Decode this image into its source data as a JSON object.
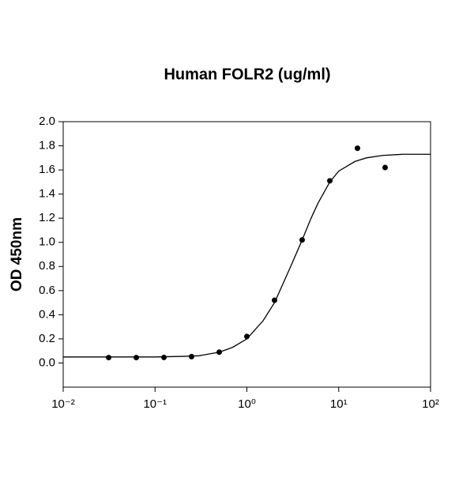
{
  "chart_data": {
    "type": "scatter",
    "title": "Human FOLR2 (ug/ml)",
    "y_label": "OD 450nm",
    "x_scale": "log",
    "xlim": [
      0.01,
      100
    ],
    "xticks": [
      {
        "value": 0.01,
        "label": "10⁻²"
      },
      {
        "value": 0.1,
        "label": "10⁻¹"
      },
      {
        "value": 1,
        "label": "10⁰"
      },
      {
        "value": 10,
        "label": "10¹"
      },
      {
        "value": 100,
        "label": "10²"
      }
    ],
    "ylim": [
      -0.2,
      2.0
    ],
    "yticks": [
      {
        "value": 0,
        "label": "0.0"
      },
      0.2,
      0.4,
      0.6,
      0.8,
      {
        "value": 1,
        "label": "1.0"
      },
      1.2,
      1.4,
      1.6,
      1.8,
      {
        "value": 2,
        "label": "2.0"
      }
    ],
    "series": [
      {
        "style": "points",
        "color": "#000000",
        "x": [
          0.03125,
          0.0625,
          0.125,
          0.25,
          0.5,
          1,
          2,
          4,
          8,
          16,
          32
        ],
        "values": [
          0.045,
          0.045,
          0.046,
          0.053,
          0.09,
          0.22,
          0.52,
          1.02,
          1.51,
          1.78,
          1.62
        ]
      },
      {
        "style": "line",
        "color": "#000000",
        "x": [
          0.01,
          0.1,
          0.2,
          0.3,
          0.5,
          0.7,
          1,
          1.5,
          2,
          3,
          4,
          5,
          6,
          8,
          10,
          15,
          20,
          30,
          50,
          100
        ],
        "values": [
          0.05,
          0.05,
          0.055,
          0.06,
          0.09,
          0.13,
          0.2,
          0.35,
          0.5,
          0.8,
          1.02,
          1.2,
          1.33,
          1.5,
          1.59,
          1.67,
          1.7,
          1.72,
          1.73,
          1.73
        ]
      }
    ]
  }
}
